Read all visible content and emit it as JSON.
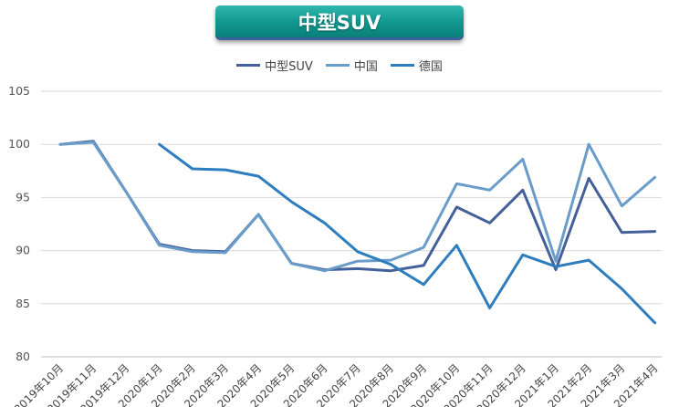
{
  "chart_data": {
    "type": "line",
    "title": "中型SUV",
    "categories": [
      "2019年10月",
      "2019年11月",
      "2019年12月",
      "2020年1月",
      "2020年2月",
      "2020年3月",
      "2020年4月",
      "2020年5月",
      "2020年6月",
      "2020年7月",
      "2020年8月",
      "2020年9月",
      "2020年10月",
      "2020年11月",
      "2020年12月",
      "2021年1月",
      "2021年2月",
      "2021年3月",
      "2021年4月"
    ],
    "series": [
      {
        "name": "中型SUV",
        "color": "#44609b",
        "values": [
          100,
          100.3,
          95.5,
          90.6,
          90.0,
          89.9,
          93.4,
          88.8,
          88.2,
          88.3,
          88.1,
          88.6,
          94.1,
          92.6,
          95.7,
          88.2,
          96.8,
          91.7,
          91.8
        ]
      },
      {
        "name": "中国",
        "color": "#6a9cc9",
        "values": [
          100,
          100.2,
          95.5,
          90.5,
          89.9,
          89.8,
          93.4,
          88.8,
          88.1,
          89.0,
          89.1,
          90.3,
          96.3,
          95.7,
          98.6,
          89.0,
          100.0,
          94.2,
          96.9
        ]
      },
      {
        "name": "德国",
        "color": "#2e7ebf",
        "values": [
          null,
          null,
          null,
          100.0,
          97.7,
          97.6,
          97.0,
          94.6,
          92.6,
          89.9,
          88.7,
          86.8,
          90.5,
          84.6,
          89.6,
          88.5,
          89.1,
          86.4,
          83.2
        ]
      }
    ],
    "ylim": [
      80,
      105
    ],
    "yticks": [
      80,
      85,
      90,
      95,
      100,
      105
    ],
    "grid": true,
    "legend_position": "top"
  }
}
